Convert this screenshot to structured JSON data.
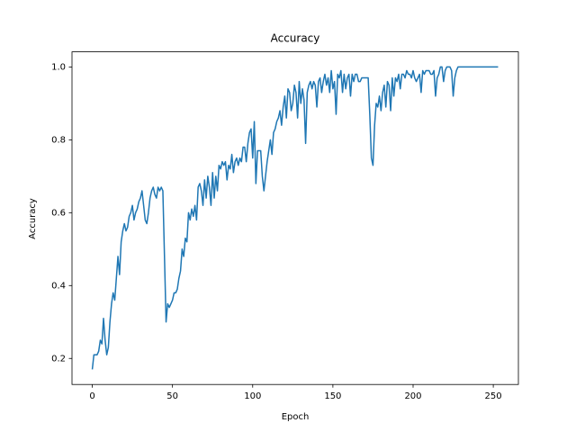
{
  "chart_data": {
    "type": "line",
    "title": "Accuracy",
    "xlabel": "Epoch",
    "ylabel": "Accuracy",
    "x": [
      0,
      1,
      2,
      3,
      4,
      5,
      6,
      7,
      8,
      9,
      10,
      11,
      12,
      13,
      14,
      15,
      16,
      17,
      18,
      19,
      20,
      21,
      22,
      23,
      24,
      25,
      26,
      27,
      28,
      29,
      30,
      31,
      32,
      33,
      34,
      35,
      36,
      37,
      38,
      39,
      40,
      41,
      42,
      43,
      44,
      45,
      46,
      47,
      48,
      49,
      50,
      51,
      52,
      53,
      54,
      55,
      56,
      57,
      58,
      59,
      60,
      61,
      62,
      63,
      64,
      65,
      66,
      67,
      68,
      69,
      70,
      71,
      72,
      73,
      74,
      75,
      76,
      77,
      78,
      79,
      80,
      81,
      82,
      83,
      84,
      85,
      86,
      87,
      88,
      89,
      90,
      91,
      92,
      93,
      94,
      95,
      96,
      97,
      98,
      99,
      100,
      101,
      102,
      103,
      104,
      105,
      106,
      107,
      108,
      109,
      110,
      111,
      112,
      113,
      114,
      115,
      116,
      117,
      118,
      119,
      120,
      121,
      122,
      123,
      124,
      125,
      126,
      127,
      128,
      129,
      130,
      131,
      132,
      133,
      134,
      135,
      136,
      137,
      138,
      139,
      140,
      141,
      142,
      143,
      144,
      145,
      146,
      147,
      148,
      149,
      150,
      151,
      152,
      153,
      154,
      155,
      156,
      157,
      158,
      159,
      160,
      161,
      162,
      163,
      164,
      165,
      166,
      167,
      168,
      169,
      170,
      171,
      172,
      173,
      174,
      175,
      176,
      177,
      178,
      179,
      180,
      181,
      182,
      183,
      184,
      185,
      186,
      187,
      188,
      189,
      190,
      191,
      192,
      193,
      194,
      195,
      196,
      197,
      198,
      199,
      200,
      201,
      202,
      203,
      204,
      205,
      206,
      207,
      208,
      209,
      210,
      211,
      212,
      213,
      214,
      215,
      216,
      217,
      218,
      219,
      220,
      221,
      222,
      223,
      224,
      225,
      226,
      227,
      228,
      229,
      230,
      231,
      232,
      233,
      234,
      235,
      236,
      237,
      238,
      239,
      240,
      241,
      242,
      243,
      244,
      245,
      246,
      247,
      248,
      249,
      250,
      251,
      252,
      253
    ],
    "series": [
      {
        "color": "#1f77b4",
        "values": [
          0.17,
          0.21,
          0.21,
          0.21,
          0.22,
          0.25,
          0.24,
          0.31,
          0.25,
          0.21,
          0.23,
          0.3,
          0.35,
          0.38,
          0.36,
          0.42,
          0.48,
          0.43,
          0.52,
          0.55,
          0.57,
          0.55,
          0.56,
          0.59,
          0.6,
          0.62,
          0.58,
          0.6,
          0.61,
          0.63,
          0.64,
          0.66,
          0.62,
          0.58,
          0.57,
          0.6,
          0.64,
          0.66,
          0.67,
          0.65,
          0.64,
          0.67,
          0.66,
          0.67,
          0.66,
          0.48,
          0.3,
          0.35,
          0.34,
          0.35,
          0.36,
          0.38,
          0.38,
          0.39,
          0.42,
          0.44,
          0.5,
          0.48,
          0.53,
          0.52,
          0.6,
          0.58,
          0.61,
          0.59,
          0.62,
          0.58,
          0.67,
          0.68,
          0.66,
          0.62,
          0.69,
          0.64,
          0.7,
          0.67,
          0.62,
          0.71,
          0.64,
          0.7,
          0.66,
          0.73,
          0.72,
          0.74,
          0.73,
          0.74,
          0.69,
          0.73,
          0.72,
          0.76,
          0.71,
          0.74,
          0.75,
          0.73,
          0.75,
          0.74,
          0.78,
          0.78,
          0.74,
          0.79,
          0.82,
          0.83,
          0.75,
          0.85,
          0.68,
          0.77,
          0.77,
          0.77,
          0.7,
          0.66,
          0.7,
          0.74,
          0.77,
          0.8,
          0.76,
          0.82,
          0.83,
          0.85,
          0.86,
          0.88,
          0.84,
          0.89,
          0.92,
          0.86,
          0.94,
          0.93,
          0.88,
          0.9,
          0.95,
          0.93,
          0.86,
          0.96,
          0.9,
          0.94,
          0.91,
          0.79,
          0.93,
          0.95,
          0.96,
          0.94,
          0.96,
          0.95,
          0.89,
          0.96,
          0.97,
          0.93,
          0.96,
          0.98,
          0.95,
          0.97,
          0.93,
          0.99,
          0.94,
          0.96,
          0.87,
          0.98,
          0.97,
          0.99,
          0.93,
          0.98,
          0.94,
          0.97,
          0.98,
          0.92,
          0.98,
          0.96,
          0.98,
          0.98,
          0.96,
          0.96,
          0.97,
          0.97,
          0.97,
          0.97,
          0.97,
          0.87,
          0.75,
          0.73,
          0.84,
          0.9,
          0.89,
          0.92,
          0.88,
          0.93,
          0.95,
          0.89,
          0.96,
          0.95,
          0.88,
          0.97,
          0.92,
          0.97,
          0.96,
          0.98,
          0.94,
          0.98,
          0.98,
          0.97,
          0.99,
          0.98,
          0.98,
          0.97,
          0.99,
          0.97,
          0.96,
          0.97,
          0.98,
          0.93,
          0.99,
          0.98,
          0.99,
          0.99,
          0.99,
          0.98,
          0.98,
          0.99,
          0.92,
          0.97,
          0.98,
          1.0,
          1.0,
          0.96,
          0.99,
          1.0,
          1.0,
          1.0,
          0.99,
          0.92,
          0.97,
          0.99,
          1.0,
          1.0,
          1.0,
          1.0,
          1.0,
          1.0,
          1.0,
          1.0,
          1.0,
          1.0,
          1.0,
          1.0,
          1.0,
          1.0,
          1.0,
          1.0,
          1.0,
          1.0,
          1.0,
          1.0,
          1.0,
          1.0,
          1.0,
          1.0,
          1.0,
          1.0
        ]
      }
    ],
    "xlim": [
      -12.65,
      265.65
    ],
    "ylim": [
      0.1285,
      1.0415
    ],
    "xticks": [
      0,
      50,
      100,
      150,
      200,
      250
    ],
    "yticks": [
      0.2,
      0.4,
      0.6,
      0.8,
      {
        "value": 1,
        "label": "1.0"
      }
    ]
  }
}
